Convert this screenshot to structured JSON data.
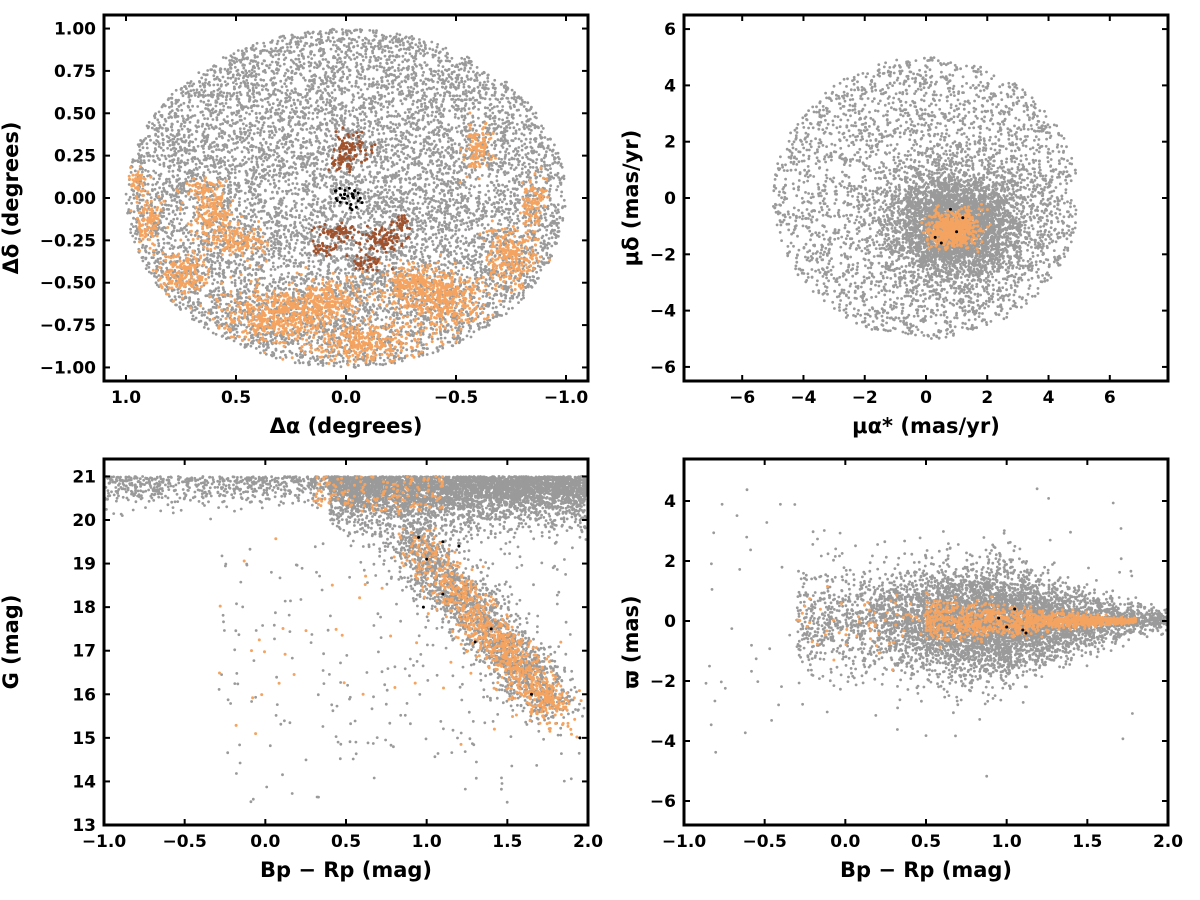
{
  "colors": {
    "field": "#9a9a9a",
    "members_core": "#a0522d",
    "members_orange": "#f4a460",
    "members_black": "#000000"
  },
  "panels": [
    {
      "name": "spatial",
      "xlabel": "Δα (degrees)",
      "ylabel": "Δδ (degrees)",
      "xticks": [
        "1.0",
        "0.5",
        "0.0",
        "−0.5",
        "−1.0"
      ],
      "yticks": [
        "1.00",
        "0.75",
        "0.50",
        "0.25",
        "0.00",
        "−0.25",
        "−0.50",
        "−0.75",
        "−1.00"
      ]
    },
    {
      "name": "proper-motion",
      "xlabel": "μα* (mas/yr)",
      "ylabel": "μδ (mas/yr)",
      "xticks": [
        "−6",
        "−4",
        "−2",
        "0",
        "2",
        "4",
        "6"
      ],
      "yticks": [
        "6",
        "4",
        "2",
        "0",
        "−2",
        "−4",
        "−6"
      ]
    },
    {
      "name": "cmd",
      "xlabel": "Bp − Rp (mag)",
      "ylabel": "G (mag)",
      "xticks": [
        "−1.0",
        "−0.5",
        "0.0",
        "0.5",
        "1.0",
        "1.5",
        "2.0"
      ],
      "yticks": [
        "21",
        "20",
        "19",
        "18",
        "17",
        "16",
        "15",
        "14",
        "13"
      ]
    },
    {
      "name": "parallax",
      "xlabel": "Bp − Rp (mag)",
      "ylabel": "ϖ (mas)",
      "xticks": [
        "−1.0",
        "−0.5",
        "0.0",
        "0.5",
        "1.0",
        "1.5",
        "2.0"
      ],
      "yticks": [
        "4",
        "2",
        "0",
        "−2",
        "−4",
        "−6"
      ]
    }
  ],
  "chart_data": [
    {
      "type": "scatter",
      "xlabel": "Δα (degrees)",
      "ylabel": "Δδ (degrees)",
      "xlim": [
        1.1,
        -1.1
      ],
      "ylim": [
        -1.08,
        1.08
      ],
      "x_inverted": true,
      "grid": false,
      "series": [
        {
          "color": "#9a9a9a",
          "description_count": "~12000 field stars filling a circle of radius 1 degree"
        },
        {
          "color": "#f4a460",
          "points_sample": [
            [
              0.9,
              -0.2
            ],
            [
              0.7,
              -0.5
            ],
            [
              0.4,
              -0.7
            ],
            [
              0.1,
              -0.85
            ],
            [
              -0.2,
              -0.8
            ],
            [
              -0.5,
              -0.6
            ],
            [
              -0.75,
              -0.4
            ],
            [
              -0.85,
              -0.1
            ],
            [
              -0.6,
              0.3
            ],
            [
              0.65,
              0.05
            ],
            [
              0.55,
              -0.15
            ],
            [
              0.3,
              -0.5
            ]
          ]
        },
        {
          "color": "#a0522d",
          "points_sample": [
            [
              0.0,
              0.28
            ],
            [
              -0.05,
              0.33
            ],
            [
              -0.1,
              0.2
            ],
            [
              0.0,
              -0.2
            ],
            [
              -0.15,
              -0.25
            ],
            [
              -0.25,
              -0.15
            ],
            [
              -0.05,
              -0.4
            ],
            [
              -0.2,
              -0.35
            ]
          ]
        },
        {
          "color": "#000000",
          "points_sample": [
            [
              0.03,
              0.0
            ],
            [
              0.0,
              0.04
            ],
            [
              -0.03,
              -0.02
            ],
            [
              0.01,
              -0.04
            ],
            [
              -0.06,
              0.01
            ],
            [
              0.02,
              0.05
            ],
            [
              -0.02,
              0.03
            ],
            [
              0.04,
              -0.03
            ]
          ]
        }
      ]
    },
    {
      "type": "scatter",
      "xlabel": "μα* (mas/yr)",
      "ylabel": "μδ (mas/yr)",
      "xlim": [
        -7.9,
        7.9
      ],
      "ylim": [
        -6.5,
        6.5
      ],
      "grid": false,
      "series": [
        {
          "color": "#9a9a9a",
          "description_count": "field stars within radius ~5 mas/yr of (0,0), dense core near (1,-1)"
        },
        {
          "color": "#f4a460",
          "center": [
            0.9,
            -1.1
          ],
          "spread": 0.45
        },
        {
          "color": "#000000",
          "points_sample": [
            [
              0.8,
              -0.4
            ],
            [
              1.2,
              -0.8
            ],
            [
              0.5,
              -1.6
            ],
            [
              1.0,
              -1.2
            ]
          ]
        }
      ]
    },
    {
      "type": "scatter",
      "xlabel": "Bp − Rp (mag)",
      "ylabel": "G (mag)",
      "xlim": [
        -1.0,
        2.0
      ],
      "ylim": [
        13,
        21.4
      ],
      "grid": false,
      "series": [
        {
          "color": "#9a9a9a",
          "description_count": "field stars concentrated at G 19.5-21, Bp-Rp 0.4-2.0, with a sequence to bright red"
        },
        {
          "color": "#f4a460",
          "sequence_sample": [
            [
              0.9,
              19.5
            ],
            [
              1.0,
              19.0
            ],
            [
              1.1,
              18.6
            ],
            [
              1.2,
              18.1
            ],
            [
              1.3,
              17.6
            ],
            [
              1.4,
              17.2
            ],
            [
              1.5,
              16.8
            ],
            [
              1.6,
              16.4
            ],
            [
              1.7,
              16.0
            ],
            [
              1.8,
              15.7
            ]
          ]
        },
        {
          "color": "#000000",
          "points_sample": [
            [
              0.95,
              19.6
            ],
            [
              1.1,
              19.5
            ],
            [
              1.2,
              19.4
            ],
            [
              1.0,
              19.1
            ],
            [
              1.1,
              18.3
            ],
            [
              1.4,
              17.5
            ],
            [
              1.65,
              16.0
            ],
            [
              1.95,
              15.0
            ]
          ]
        }
      ]
    },
    {
      "type": "scatter",
      "xlabel": "Bp − Rp (mag)",
      "ylabel": "ϖ (mas)",
      "xlim": [
        -1.0,
        2.0
      ],
      "ylim": [
        -6.8,
        5.4
      ],
      "grid": false,
      "series": [
        {
          "color": "#9a9a9a",
          "description_count": "field stars around ϖ = 0, spread larger at blue colors"
        },
        {
          "color": "#f4a460",
          "description": "members at ϖ ≈ 0, colors 0.5-1.8, narrowing to the red"
        },
        {
          "color": "#000000",
          "points_sample": [
            [
              1.05,
              0.4
            ],
            [
              1.1,
              -0.3
            ],
            [
              0.95,
              0.1
            ],
            [
              1.12,
              -0.4
            ]
          ]
        }
      ]
    }
  ]
}
